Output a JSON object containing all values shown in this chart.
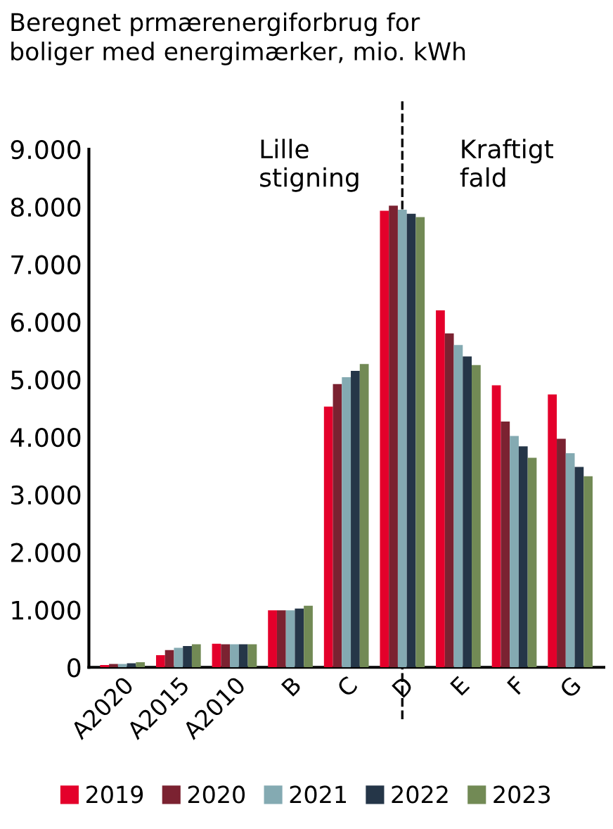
{
  "chart_data": {
    "type": "bar",
    "title": "Beregnet prmærenergiforbrug for\nboliger med energimærker, mio. kWh",
    "categories": [
      "A2020",
      "A2015",
      "A2010",
      "B",
      "C",
      "D",
      "E",
      "F",
      "G"
    ],
    "series": [
      {
        "name": "2019",
        "color": "#e4002b",
        "values": [
          40,
          210,
          410,
          990,
          4530,
          7930,
          6200,
          4900,
          4740
        ]
      },
      {
        "name": "2020",
        "color": "#7b2231",
        "values": [
          60,
          300,
          400,
          990,
          4920,
          8020,
          5800,
          4270,
          3970
        ]
      },
      {
        "name": "2021",
        "color": "#84aab2",
        "values": [
          60,
          340,
          400,
          990,
          5040,
          7950,
          5600,
          4020,
          3720
        ]
      },
      {
        "name": "2022",
        "color": "#253648",
        "values": [
          70,
          370,
          400,
          1020,
          5150,
          7880,
          5400,
          3840,
          3480
        ]
      },
      {
        "name": "2023",
        "color": "#728a55",
        "values": [
          90,
          400,
          400,
          1070,
          5270,
          7820,
          5250,
          3640,
          3320
        ]
      }
    ],
    "ylim": [
      0,
      9000
    ],
    "yticks": [
      0,
      {
        "value": 1000,
        "label": "1.000"
      },
      {
        "value": 2000,
        "label": "2.000"
      },
      {
        "value": 3000,
        "label": "3.000"
      },
      {
        "value": 4000,
        "label": "4.000"
      },
      {
        "value": 5000,
        "label": "5.000"
      },
      {
        "value": 6000,
        "label": "6.000"
      },
      {
        "value": 7000,
        "label": "7.000"
      },
      {
        "value": 8000,
        "label": "8.000"
      },
      {
        "value": 9000,
        "label": "9.000"
      }
    ],
    "ref_lines": [
      {
        "axis": "x",
        "value": "D",
        "color": "#000000",
        "line_style": "dashed"
      }
    ],
    "annotations": [
      "Lille\nstigning",
      "Kraftigt\nfald"
    ],
    "grid": false,
    "legend": "bottom"
  }
}
